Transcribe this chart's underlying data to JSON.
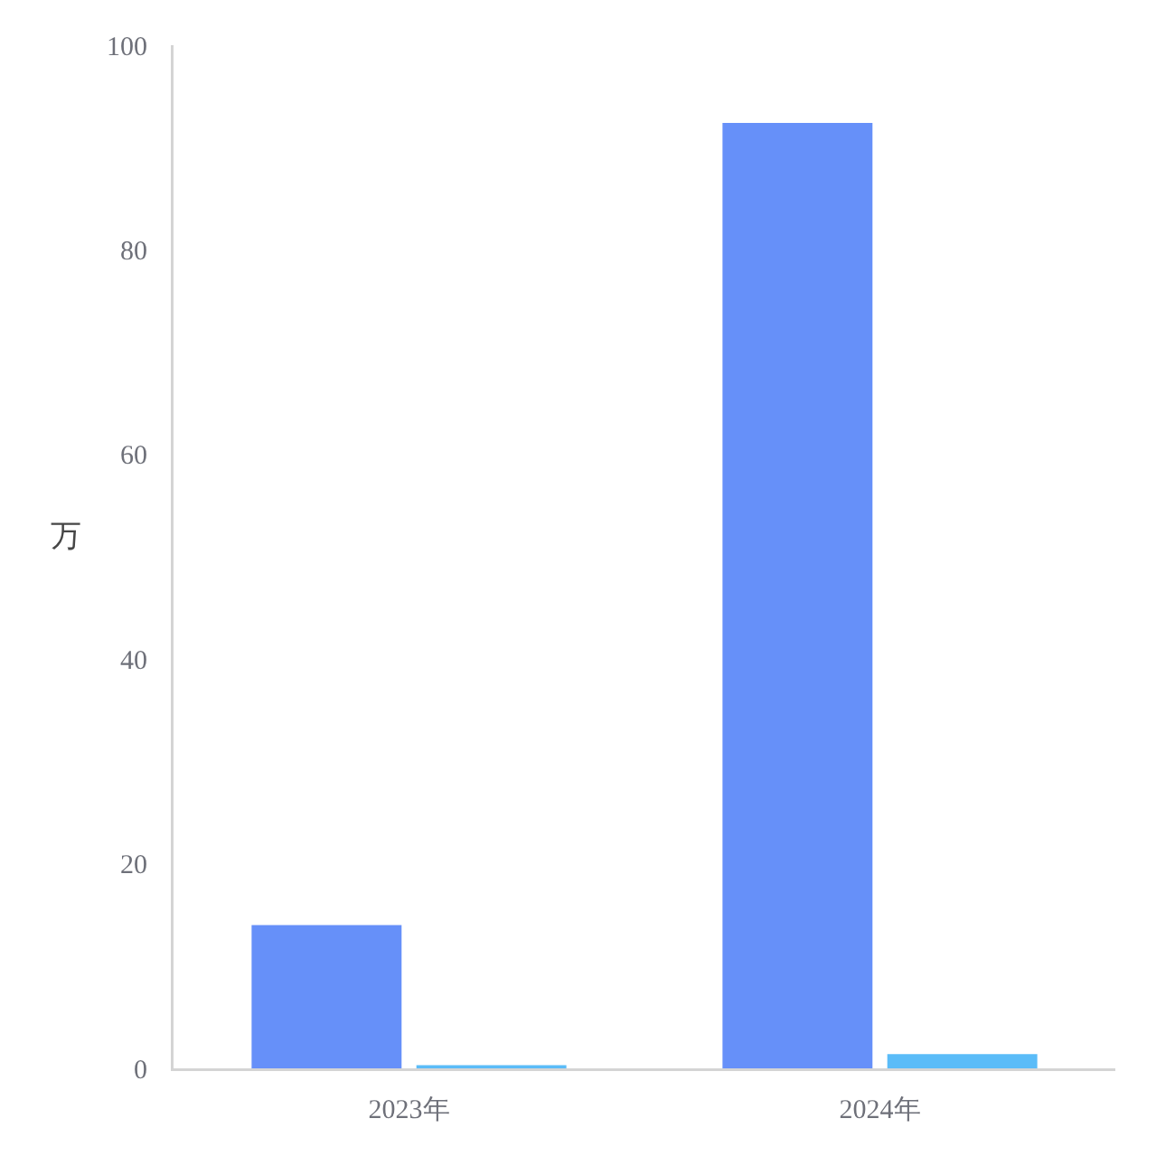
{
  "chart_data": {
    "type": "bar",
    "ylabel": "万",
    "categories": [
      "2023年",
      "2024年"
    ],
    "series": [
      {
        "color": "#6690f9",
        "values": [
          14,
          92.4
        ]
      },
      {
        "color": "#5bbcf8",
        "values": [
          0.3,
          1.4
        ]
      }
    ],
    "ylim": [
      0,
      100
    ],
    "yticks": [
      0,
      20,
      40,
      60,
      80,
      100
    ],
    "grid": false
  }
}
